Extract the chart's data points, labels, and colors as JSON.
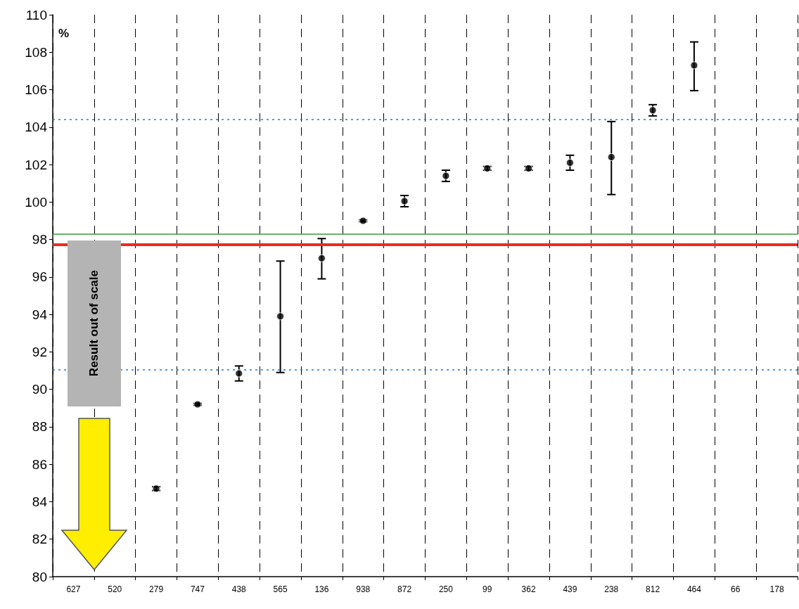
{
  "chart_data": {
    "type": "scatter",
    "ylabel": "%",
    "categories": [
      "627",
      "520",
      "279",
      "747",
      "438",
      "565",
      "136",
      "938",
      "872",
      "250",
      "99",
      "362",
      "439",
      "238",
      "812",
      "464",
      "66",
      "178"
    ],
    "values": [
      null,
      null,
      84.7,
      89.2,
      90.85,
      93.9,
      97.0,
      99.0,
      100.05,
      101.4,
      101.8,
      101.8,
      102.1,
      102.4,
      104.9,
      107.3,
      null,
      null
    ],
    "errors": [
      null,
      null,
      0.1,
      0.05,
      0.4,
      [
        90.9,
        96.85
      ],
      [
        95.9,
        98.05
      ],
      0.05,
      0.3,
      0.3,
      0.1,
      0.1,
      0.4,
      [
        100.4,
        104.3
      ],
      0.3,
      [
        105.95,
        108.55
      ],
      null,
      null
    ],
    "color": "#000000",
    "marker": "circle",
    "ylim": [
      80,
      110
    ],
    "yticks": [
      80,
      82,
      84,
      86,
      88,
      90,
      92,
      94,
      96,
      98,
      100,
      102,
      104,
      106,
      108,
      110
    ],
    "grid": "x",
    "ref_lines": [
      {
        "axis": "y",
        "value": 104.4,
        "color": "#2e75d6",
        "line_style": "dotted"
      },
      {
        "axis": "y",
        "value": 91.05,
        "color": "#2e75d6",
        "line_style": "dotted"
      },
      {
        "axis": "y",
        "value": 98.3,
        "color": "#3a9a3a",
        "line_style": "solid"
      },
      {
        "axis": "y",
        "value": 97.75,
        "color": "#ee2a1e",
        "line_style": "solid"
      }
    ],
    "annotations": [
      "Result out of scale"
    ]
  }
}
